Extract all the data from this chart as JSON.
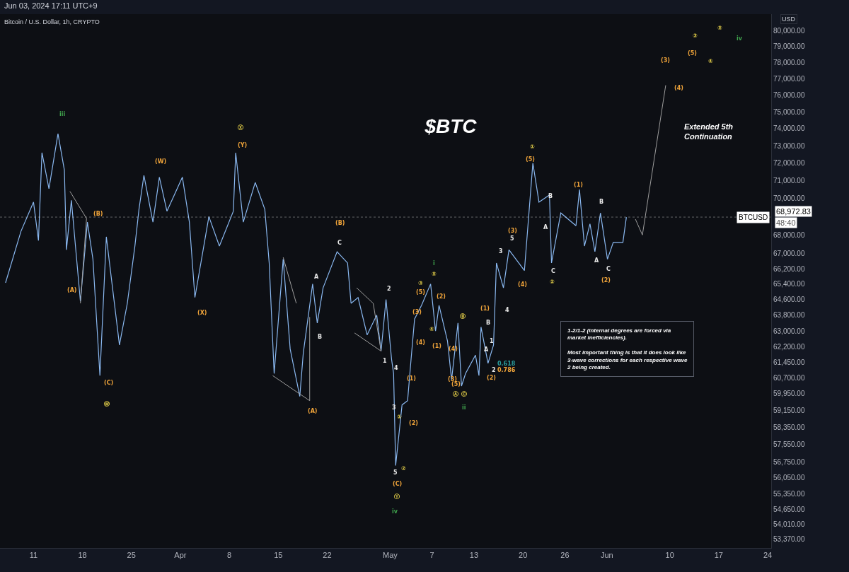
{
  "chart_data": {
    "type": "line",
    "title": "$BTC",
    "subtitle": "Bitcoin / U.S. Dollar, 1h, CRYPTO",
    "ylabel": "USD",
    "log": "y",
    "xlim": [
      "--03-06T05:00",
      "--06-24T12:00"
    ],
    "xticks": [
      {
        "value": "--03-11",
        "label": "11"
      },
      {
        "value": "--03-18",
        "label": "18"
      },
      {
        "value": "--03-25",
        "label": "25"
      },
      {
        "value": "--04-01",
        "label": "Apr"
      },
      {
        "value": "--04-08",
        "label": "8"
      },
      {
        "value": "--04-15",
        "label": "15"
      },
      {
        "value": "--04-22",
        "label": "22"
      },
      {
        "value": "--05-01",
        "label": "May"
      },
      {
        "value": "--05-07",
        "label": "7"
      },
      {
        "value": "--05-13",
        "label": "13"
      },
      {
        "value": "--05-20",
        "label": "20"
      },
      {
        "value": "--05-26",
        "label": "26"
      },
      {
        "value": "--06-01",
        "label": "Jun"
      },
      {
        "value": "--06-10",
        "label": "10"
      },
      {
        "value": "--06-17",
        "label": "17"
      },
      {
        "value": "--06-24",
        "label": "24"
      }
    ],
    "ylim": [
      53010,
      81060
    ],
    "yticks": [
      {
        "value": 53370,
        "label": "53,370.00"
      },
      {
        "value": 54010,
        "label": "54,010.00"
      },
      {
        "value": 54650,
        "label": "54,650.00"
      },
      {
        "value": 55350,
        "label": "55,350.00"
      },
      {
        "value": 56050,
        "label": "56,050.00"
      },
      {
        "value": 56750,
        "label": "56,750.00"
      },
      {
        "value": 57550,
        "label": "57,550.00"
      },
      {
        "value": 58350,
        "label": "58,350.00"
      },
      {
        "value": 59150,
        "label": "59,150.00"
      },
      {
        "value": 59950,
        "label": "59,950.00"
      },
      {
        "value": 60700,
        "label": "60,700.00"
      },
      {
        "value": 61450,
        "label": "61,450.00"
      },
      {
        "value": 62200,
        "label": "62,200.00"
      },
      {
        "value": 63000,
        "label": "63,000.00"
      },
      {
        "value": 63800,
        "label": "63,800.00"
      },
      {
        "value": 64600,
        "label": "64,600.00"
      },
      {
        "value": 65400,
        "label": "65,400.00"
      },
      {
        "value": 66200,
        "label": "66,200.00"
      },
      {
        "value": 67000,
        "label": "67,000.00"
      },
      {
        "value": 68000,
        "label": "68,000.00"
      },
      {
        "value": 70000,
        "label": "70,000.00"
      },
      {
        "value": 71000,
        "label": "71,000.00"
      },
      {
        "value": 72000,
        "label": "72,000.00"
      },
      {
        "value": 73000,
        "label": "73,000.00"
      },
      {
        "value": 74000,
        "label": "74,000.00"
      },
      {
        "value": 75000,
        "label": "75,000.00"
      },
      {
        "value": 76000,
        "label": "76,000.00"
      },
      {
        "value": 77000,
        "label": "77,000.00"
      },
      {
        "value": 78000,
        "label": "78,000.00"
      },
      {
        "value": 79000,
        "label": "79,000.00"
      },
      {
        "value": 80000,
        "label": "80,000.00"
      }
    ],
    "line_style": "solid",
    "series": [
      {
        "color": "#8ab8f0",
        "x": [
          "--03-07T00:00",
          "--03-09T05:00",
          "--03-11T00:00",
          "--03-11T17:00",
          "--03-12T05:00",
          "--03-13T05:00",
          "--03-14T12:00",
          "--03-15T10:00",
          "--03-15T17:00",
          "--03-16T10:00",
          "--03-17T17:00",
          "--03-18T17:00",
          "--03-19T12:00",
          "--03-20T12:00",
          "--03-21T10:00",
          "--03-23T07:00",
          "--03-24T10:00",
          "--03-25T12:00",
          "--03-26T02:00",
          "--03-26T19:00",
          "--03-28T02:00",
          "--03-29T00:00",
          "--03-30T02:00",
          "--04-01T07:00",
          "--04-02T07:00",
          "--04-03T02:00",
          "--04-05T02:00",
          "--04-06T14:00",
          "--04-08T14:00",
          "--04-08T22:00",
          "--04-10T00:00",
          "--04-11T17:00",
          "--04-13T02:00",
          "--04-13T17:00",
          "--04-14T10:00",
          "--04-15T17:00",
          "--04-16T17:00",
          "--04-18T02:00",
          "--04-18T14:00",
          "--04-19T22:00",
          "--04-20T14:00",
          "--04-21T10:00",
          "--04-23T10:00",
          "--04-24T22:00",
          "--04-25T10:00",
          "--04-26T10:00",
          "--04-27T17:00",
          "--04-29T02:00",
          "--04-29T17:00",
          "--04-30T10:00",
          "--05-01T05:00",
          "--05-01T12:00",
          "--05-01T19:00",
          "--05-02T17:00",
          "--05-03T12:00",
          "--05-04T00:00",
          "--05-04T12:00",
          "--05-05T12:00",
          "--05-06T19:00",
          "--05-07T12:00",
          "--05-08T00:00",
          "--05-09T05:00",
          "--05-09T19:00",
          "--05-10T17:00",
          "--05-11T05:00",
          "--05-11T19:00",
          "--05-13T05:00",
          "--05-13T17:00",
          "--05-14T00:00",
          "--05-15T00:00",
          "--05-15T19:00",
          "--05-16T05:00",
          "--05-17T05:00",
          "--05-18T00:00",
          "--05-20T05:00",
          "--05-21T10:00",
          "--05-22T07:00",
          "--05-23T19:00",
          "--05-24T02:00",
          "--05-25T10:00",
          "--05-27T14:00",
          "--05-28T02:00",
          "--05-28T19:00",
          "--05-29T14:00",
          "--05-30T07:00",
          "--05-31T02:00",
          "--06-01T02:00",
          "--06-01T22:00",
          "--06-03T07:00",
          "--06-03T19:00"
        ],
        "values": [
          65460,
          68200,
          69800,
          67700,
          72600,
          70550,
          73700,
          71600,
          67200,
          69900,
          64500,
          68700,
          66700,
          60800,
          67900,
          62300,
          64400,
          67400,
          69400,
          71300,
          68700,
          71200,
          69300,
          71200,
          68700,
          64700,
          69000,
          67400,
          69300,
          72600,
          68700,
          70900,
          69400,
          66500,
          60900,
          66700,
          62100,
          59800,
          61900,
          65400,
          63400,
          65200,
          67100,
          66500,
          64400,
          64700,
          62800,
          63800,
          62000,
          64600,
          61600,
          60900,
          56600,
          59400,
          59600,
          61600,
          63600,
          64300,
          65400,
          63000,
          64300,
          62500,
          60600,
          63400,
          60300,
          60900,
          61800,
          60800,
          63200,
          61400,
          62300,
          66500,
          65200,
          67200,
          66100,
          72000,
          69800,
          70200,
          66500,
          69200,
          68500,
          70500,
          67400,
          68600,
          67100,
          69200,
          66700,
          67600,
          67600,
          68970
        ]
      },
      {
        "color": "#9e9e9e",
        "x": [
          "--06-05T02:00",
          "--06-06T02:00",
          "--06-09T10:00"
        ],
        "values": [
          68860,
          68000,
          76600
        ]
      },
      {
        "color": "#9e9e9e",
        "x": [
          "--03-16T05:00",
          "--03-18T14:00",
          "--03-17T17:00"
        ],
        "values": [
          70400,
          68900,
          64400
        ]
      },
      {
        "color": "#9e9e9e",
        "x": [
          "--04-15T17:00",
          "--04-17T14:00"
        ],
        "values": [
          66800,
          64400
        ]
      },
      {
        "color": "#9e9e9e",
        "x": [
          "--04-14T05:00",
          "--04-19T12:00",
          "--04-19T12:00"
        ],
        "values": [
          60800,
          59600,
          63700
        ]
      },
      {
        "color": "#9e9e9e",
        "x": [
          "--04-26T05:00",
          "--04-28T14:00",
          "--04-29T17:00",
          "--04-25T22:00"
        ],
        "values": [
          65200,
          64400,
          62000,
          62900
        ]
      }
    ],
    "ref_lines": [
      {
        "axis": "y",
        "value": 68972.83,
        "label": "BTCUSD",
        "color": "#ffffff",
        "line_style": "dotted"
      }
    ],
    "annotations": [
      "Jun 03, 2024 17:11 UTC+9",
      "Extended 5th\nContinuation",
      "1-2/1-2 (internal degrees are forced via\nmarket inefficiencies).\n\nMost important thing is that it does look like\n3-wave corrections for each respective wave\n2 being created.",
      "68,972.83",
      "48:40",
      "iii",
      "(A)",
      "(B)",
      "(C)",
      "Ⓦ",
      "(W)",
      "(X)",
      "Ⓧ",
      "(Y)",
      "(A)",
      "A",
      "B",
      "C",
      "(B)",
      "2",
      "1",
      "4",
      "3",
      "①",
      "5",
      "②",
      "(C)",
      "Ⓨ",
      "iv",
      "(1)",
      "(2)",
      "③",
      "(5)",
      "(3)",
      "(4)",
      "i",
      "⑤",
      "(2)",
      "④",
      "(1)",
      "(4)",
      "(3)",
      "(5)",
      "Ⓐ",
      "Ⓑ",
      "Ⓒ",
      "ii",
      "(1)",
      "B",
      "A",
      "1",
      "2",
      "(2)",
      "0.618",
      "0.786",
      "3",
      "4",
      "5",
      "(3)",
      "(4)",
      "①",
      "(5)",
      "B",
      "A",
      "C",
      "②",
      "(1)",
      "B",
      "A",
      "C",
      "(2)",
      "(3)",
      "(4)",
      "③",
      "(5)",
      "④",
      "⑤",
      "iv"
    ]
  }
}
